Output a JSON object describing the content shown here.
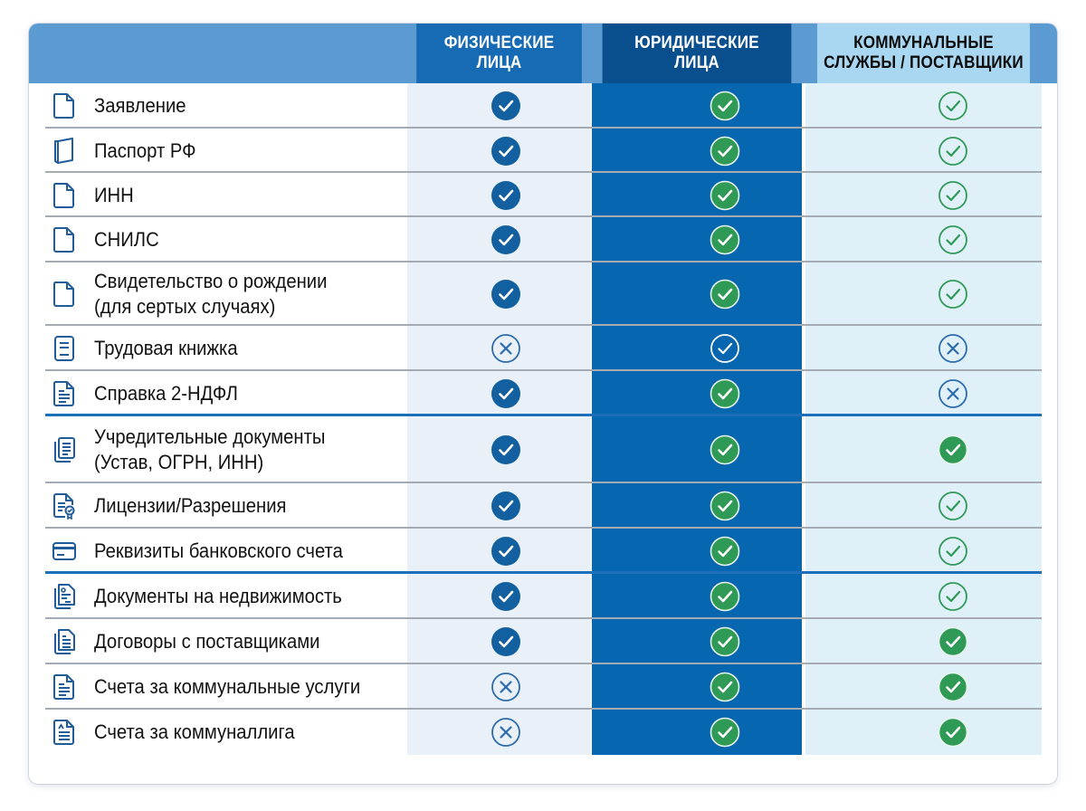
{
  "table": {
    "columns": [
      {
        "key": "individuals",
        "label": "ФИЗИЧЕСКИЕ\nЛИЦА"
      },
      {
        "key": "legal_entities",
        "label": "ЮРИДИЧЕСКИЕ\nЛИЦА"
      },
      {
        "key": "utilities_suppliers",
        "label": "КОММУНАЛЬНЫЕ\nСЛУЖБЫ / ПОСТАВЩИКИ"
      }
    ],
    "colors": {
      "header_bar": "#5b9bd1",
      "individuals_header": "#176bb4",
      "legal_header": "#0a4f8d",
      "utilities_header": "#a9d7f1",
      "check_blue": "#12609f",
      "check_green": "#2e9a55",
      "cross_blue": "#2a6cae"
    },
    "rows": [
      {
        "label": "Заявление",
        "icon": "document-icon",
        "marks": [
          "check-filled-blue",
          "check-filled-green",
          "check-outline-green"
        ]
      },
      {
        "label": "Паспорт РФ",
        "icon": "passport-icon",
        "marks": [
          "check-filled-blue",
          "check-filled-green",
          "check-outline-green"
        ]
      },
      {
        "label": "ИНН",
        "icon": "document-icon",
        "marks": [
          "check-filled-blue",
          "check-filled-green",
          "check-outline-green"
        ]
      },
      {
        "label": "СНИЛС",
        "icon": "document-icon",
        "marks": [
          "check-filled-blue",
          "check-filled-green",
          "check-outline-green"
        ]
      },
      {
        "label": "Свидетельство о рождении\n(для сертых случаях)",
        "icon": "document-icon",
        "marks": [
          "check-filled-blue",
          "check-filled-green",
          "check-outline-green"
        ]
      },
      {
        "label": "Трудовая книжка",
        "icon": "workbook-icon",
        "marks": [
          "cross-outline-blue",
          "check-outline-white",
          "cross-outline-blue"
        ]
      },
      {
        "label": "Справка 2-НДФЛ",
        "icon": "text-document-icon",
        "marks": [
          "check-filled-blue",
          "check-filled-green",
          "cross-outline-blue"
        ]
      },
      {
        "label": "Учредительные документы\n(Устав, ОГРН, ИНН)",
        "icon": "stacked-documents-icon",
        "marks": [
          "check-filled-blue",
          "check-filled-green",
          "check-filled-green"
        ]
      },
      {
        "label": "Лицензии/Разрешения",
        "icon": "certificate-icon",
        "marks": [
          "check-filled-blue",
          "check-filled-green",
          "check-outline-green"
        ]
      },
      {
        "label": "Реквизиты банковского счета",
        "icon": "bank-card-icon",
        "marks": [
          "check-filled-blue",
          "check-filled-green",
          "check-outline-green"
        ]
      },
      {
        "label": "Документы на недвижимость",
        "icon": "property-documents-icon",
        "marks": [
          "check-filled-blue",
          "check-filled-green",
          "check-outline-green"
        ]
      },
      {
        "label": "Договоры с поставщиками",
        "icon": "contracts-icon",
        "marks": [
          "check-filled-blue",
          "check-filled-green",
          "check-filled-green"
        ]
      },
      {
        "label": "Счета за коммунальные услуги",
        "icon": "text-document-icon",
        "marks": [
          "cross-outline-blue",
          "check-filled-green",
          "check-filled-green"
        ]
      },
      {
        "label": "Счета за  коммуналлига",
        "icon": "bill-document-icon",
        "marks": [
          "cross-outline-blue",
          "check-filled-green",
          "check-filled-green"
        ]
      }
    ]
  }
}
